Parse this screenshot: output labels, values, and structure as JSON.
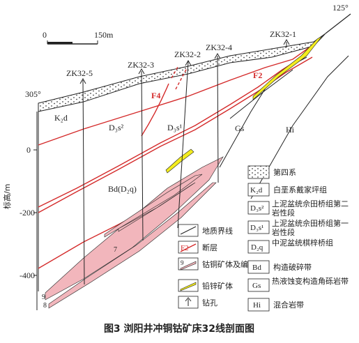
{
  "figure": {
    "caption": "图3  浏阳井冲铜钴矿床32线剖面图",
    "scale_bar": {
      "start": "0",
      "end": "150m"
    },
    "elevation_left": "305°",
    "elevation_right": "125°",
    "axis": {
      "label": "标高/m",
      "ticks": [
        "0",
        "-200",
        "-400"
      ]
    },
    "boreholes": [
      "ZK32-5",
      "ZK32-3",
      "ZK32-2",
      "ZK32-4",
      "ZK32-1"
    ],
    "faults": [
      "F4",
      "F2"
    ],
    "units": {
      "k2d": "K₂d",
      "d3s2": "D₃s²",
      "d3s1": "D₃s¹",
      "gs": "Gs",
      "hi": "Hi",
      "bd": "Bd(D₂q)"
    },
    "orebody_numbers": [
      "7",
      "9",
      "8"
    ],
    "legend": {
      "quaternary": "第四系",
      "k2d_sym": "K₂d",
      "k2d": "白垩系戴家坪组",
      "d3s2_sym": "D₃s²",
      "d3s2": "上泥盆统佘田桥组第二岩性段",
      "d3s1_sym": "D₃s¹",
      "d3s1": "上泥盆统佘田桥组第一岩性段",
      "d2q_sym": "D₂q",
      "d2q": "中泥盆统棋梓桥组",
      "bd_sym": "Bd",
      "bd": "构造破碎带",
      "gs_sym": "Gs",
      "gs": "热液蚀变构造角砾岩带",
      "hi_sym": "Hi",
      "hi": "混合岩带",
      "geo_boundary": "地质界线",
      "fault_sym": "F2",
      "fault": "断层",
      "cuco_sym": "9",
      "cuco": "钴铜矿体及编号",
      "pbzn": "铅锌矿体",
      "borehole": "钻孔"
    },
    "colors": {
      "fault": "#d42a2a",
      "cuco_orebody": "#f2b6bc",
      "pbzn_orebody": "#f3ec1f",
      "line": "#222222"
    }
  }
}
